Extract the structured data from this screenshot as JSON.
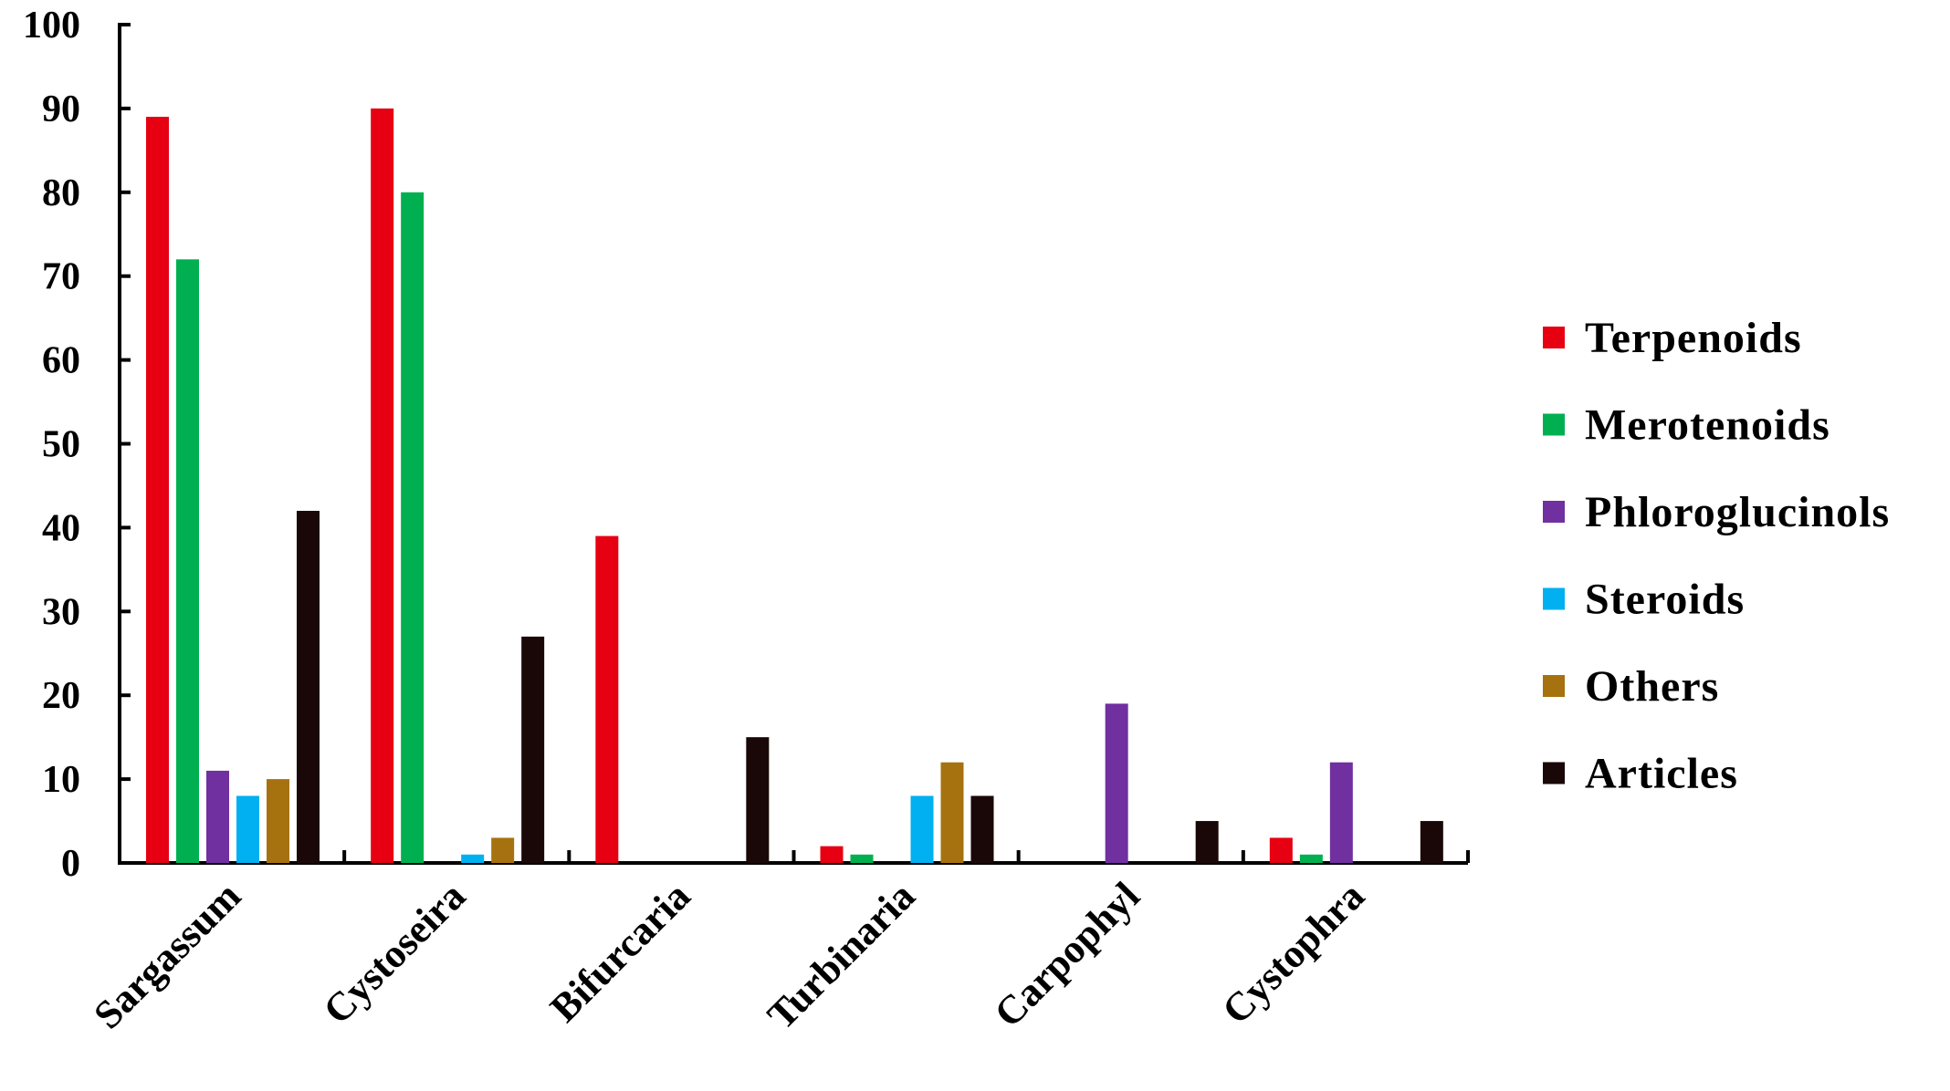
{
  "chart_data": {
    "type": "bar",
    "title": "",
    "xlabel": "",
    "ylabel": "",
    "ylim": [
      0,
      100
    ],
    "yticks": [
      0,
      10,
      20,
      30,
      40,
      50,
      60,
      70,
      80,
      90,
      100
    ],
    "grid": false,
    "legend_position": "right",
    "categories": [
      "Sargassum",
      "Cystoseira",
      "Bifurcaria",
      "Turbinaria",
      "Carpophyl",
      "Cystophra"
    ],
    "series": [
      {
        "name": "Terpenoids",
        "color": "#e60012",
        "values": [
          89,
          90,
          39,
          2,
          0,
          3
        ]
      },
      {
        "name": "Merotenoids",
        "color": "#00b050",
        "values": [
          72,
          80,
          0,
          1,
          0,
          1
        ]
      },
      {
        "name": "Phloroglucinols",
        "color": "#7030a0",
        "values": [
          11,
          0,
          0,
          0,
          19,
          12
        ]
      },
      {
        "name": "Steroids",
        "color": "#00b0f0",
        "values": [
          8,
          1,
          0,
          8,
          0,
          0
        ]
      },
      {
        "name": "Others",
        "color": "#a5720f",
        "values": [
          10,
          3,
          0,
          12,
          0,
          0
        ]
      },
      {
        "name": "Articles",
        "color": "#1a0707",
        "values": [
          42,
          27,
          15,
          8,
          5,
          5
        ]
      }
    ]
  }
}
